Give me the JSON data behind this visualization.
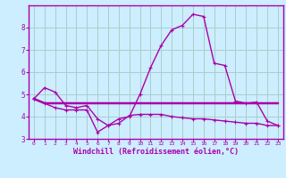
{
  "xlabel": "Windchill (Refroidissement éolien,°C)",
  "bg_color": "#cceeff",
  "line_color": "#aa00aa",
  "grid_color": "#aacccc",
  "hours": [
    0,
    1,
    2,
    3,
    4,
    5,
    6,
    7,
    8,
    9,
    10,
    11,
    12,
    13,
    14,
    15,
    16,
    17,
    18,
    19,
    20,
    21,
    22,
    23
  ],
  "line1": [
    4.8,
    5.3,
    5.1,
    4.5,
    4.4,
    4.5,
    3.9,
    3.6,
    3.9,
    4.0,
    5.0,
    6.2,
    7.2,
    7.9,
    8.1,
    8.6,
    8.5,
    6.4,
    6.3,
    4.7,
    4.6,
    4.65,
    3.8,
    3.6
  ],
  "line2": [
    4.8,
    4.6,
    4.6,
    4.6,
    4.6,
    4.6,
    4.6,
    4.6,
    4.6,
    4.6,
    4.6,
    4.6,
    4.6,
    4.6,
    4.6,
    4.6,
    4.6,
    4.6,
    4.6,
    4.6,
    4.6,
    4.6,
    4.6,
    4.6
  ],
  "line3": [
    4.8,
    4.6,
    4.4,
    4.3,
    4.3,
    4.3,
    3.3,
    3.6,
    3.7,
    4.05,
    4.1,
    4.1,
    4.1,
    4.0,
    3.95,
    3.9,
    3.9,
    3.85,
    3.8,
    3.75,
    3.7,
    3.7,
    3.6,
    3.6
  ],
  "ylim": [
    3.0,
    9.0
  ],
  "yticks": [
    3,
    4,
    5,
    6,
    7,
    8
  ],
  "xlim": [
    -0.5,
    23.5
  ]
}
